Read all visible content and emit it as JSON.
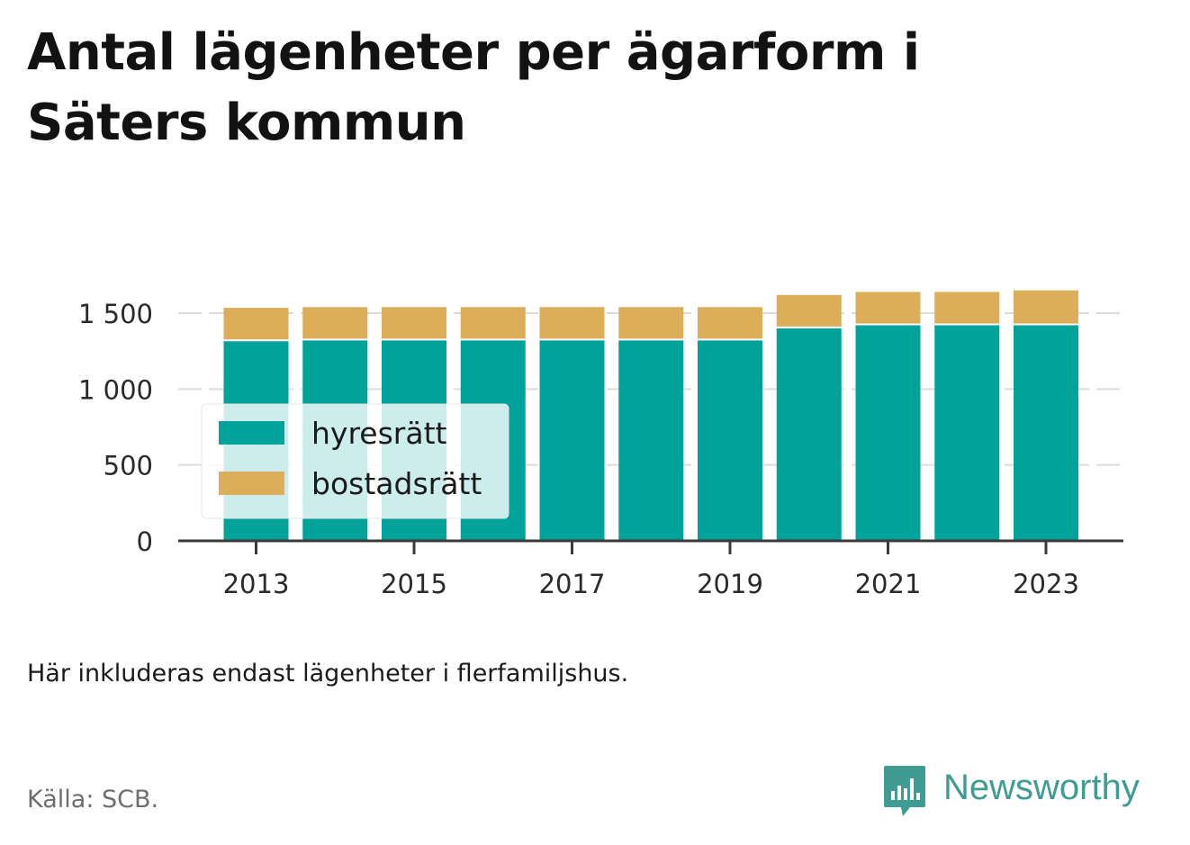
{
  "title": "Antal lägenheter per ägarform i Säters kommun",
  "note": "Här inkluderas endast lägenheter i flerfamiljshus.",
  "source": "Källa: SCB.",
  "brand": {
    "name": "Newsworthy",
    "icon": "newsworthy-logo-icon",
    "color": "#3e9c92"
  },
  "chart_data": {
    "type": "bar",
    "stacked": true,
    "categories": [
      "2013",
      "2014",
      "2015",
      "2016",
      "2017",
      "2018",
      "2019",
      "2020",
      "2021",
      "2022",
      "2023"
    ],
    "series": [
      {
        "name": "hyresrätt",
        "color": "#00a39a",
        "values": [
          1315,
          1320,
          1320,
          1320,
          1320,
          1320,
          1320,
          1400,
          1420,
          1420,
          1420
        ]
      },
      {
        "name": "bostadsrätt",
        "color": "#dcae5a",
        "values": [
          220,
          220,
          220,
          220,
          220,
          220,
          220,
          220,
          220,
          220,
          230
        ]
      }
    ],
    "xticks": [
      "2013",
      "2015",
      "2017",
      "2019",
      "2021",
      "2023"
    ],
    "yticks": [
      {
        "value": 0,
        "label": "0"
      },
      {
        "value": 500,
        "label": "500"
      },
      {
        "value": 1000,
        "label": "1 000"
      },
      {
        "value": 1500,
        "label": "1 500"
      }
    ],
    "ylim": [
      0,
      1660
    ],
    "grid": "horizontal",
    "legend_position": "left-inside"
  }
}
